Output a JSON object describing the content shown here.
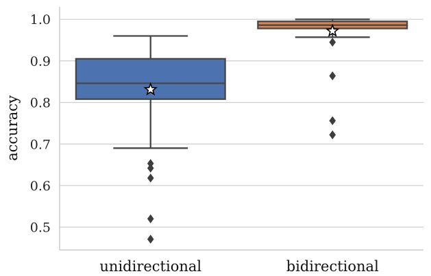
{
  "chart_data": {
    "type": "box",
    "ylabel": "accuracy",
    "ylim": [
      0.445,
      1.03
    ],
    "yticks": [
      "0.5",
      "0.6",
      "0.7",
      "0.8",
      "0.9",
      "1.0"
    ],
    "grid": "horizontal",
    "marker_mean": "star",
    "categories": [
      "unidirectional",
      "bidirectional"
    ],
    "boxes": [
      {
        "category": "unidirectional",
        "color": "#4c72b0",
        "whisker_low": 0.69,
        "q1": 0.808,
        "median": 0.846,
        "q3": 0.905,
        "whisker_high": 0.96,
        "mean": 0.831,
        "outliers": [
          0.653,
          0.642,
          0.618,
          0.52,
          0.471
        ]
      },
      {
        "category": "bidirectional",
        "color": "#dd8452",
        "whisker_low": 0.957,
        "q1": 0.978,
        "median": 0.986,
        "q3": 0.995,
        "whisker_high": 1.0,
        "mean": 0.972,
        "outliers": [
          0.945,
          0.864,
          0.756,
          0.722
        ]
      }
    ]
  }
}
